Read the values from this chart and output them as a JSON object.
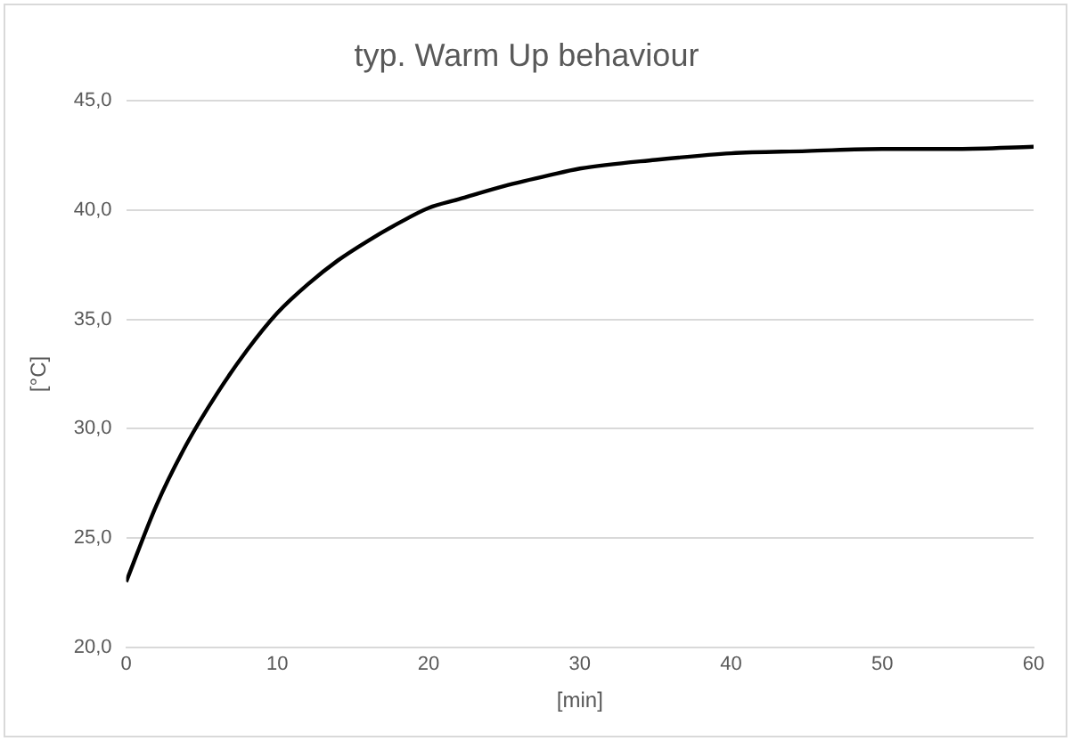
{
  "chart_data": {
    "type": "line",
    "title": "typ. Warm Up behaviour",
    "xlabel": "[min]",
    "ylabel": "[°C]",
    "x": [
      0,
      2,
      4,
      6,
      8,
      10,
      12,
      14,
      16,
      18,
      20,
      22,
      25,
      28,
      30,
      35,
      40,
      45,
      50,
      55,
      60
    ],
    "series": [
      {
        "color": "#000000",
        "values": [
          23.0,
          26.5,
          29.3,
          31.6,
          33.6,
          35.3,
          36.6,
          37.7,
          38.6,
          39.4,
          40.1,
          40.5,
          41.1,
          41.6,
          41.9,
          42.3,
          42.6,
          42.7,
          42.8,
          42.8,
          42.9
        ]
      }
    ],
    "xlim": [
      0,
      60
    ],
    "xticks": [
      0,
      10,
      20,
      30,
      40,
      50,
      60
    ],
    "ylim": [
      20,
      45
    ],
    "yticks": [
      {
        "value": 20,
        "label": "20,0"
      },
      {
        "value": 25,
        "label": "25,0"
      },
      {
        "value": 30,
        "label": "30,0"
      },
      {
        "value": 35,
        "label": "35,0"
      },
      {
        "value": 40,
        "label": "40,0"
      },
      {
        "value": 45,
        "label": "45,0"
      }
    ],
    "grid": "y",
    "legend": false,
    "marker": "none",
    "line_style": "solid"
  }
}
